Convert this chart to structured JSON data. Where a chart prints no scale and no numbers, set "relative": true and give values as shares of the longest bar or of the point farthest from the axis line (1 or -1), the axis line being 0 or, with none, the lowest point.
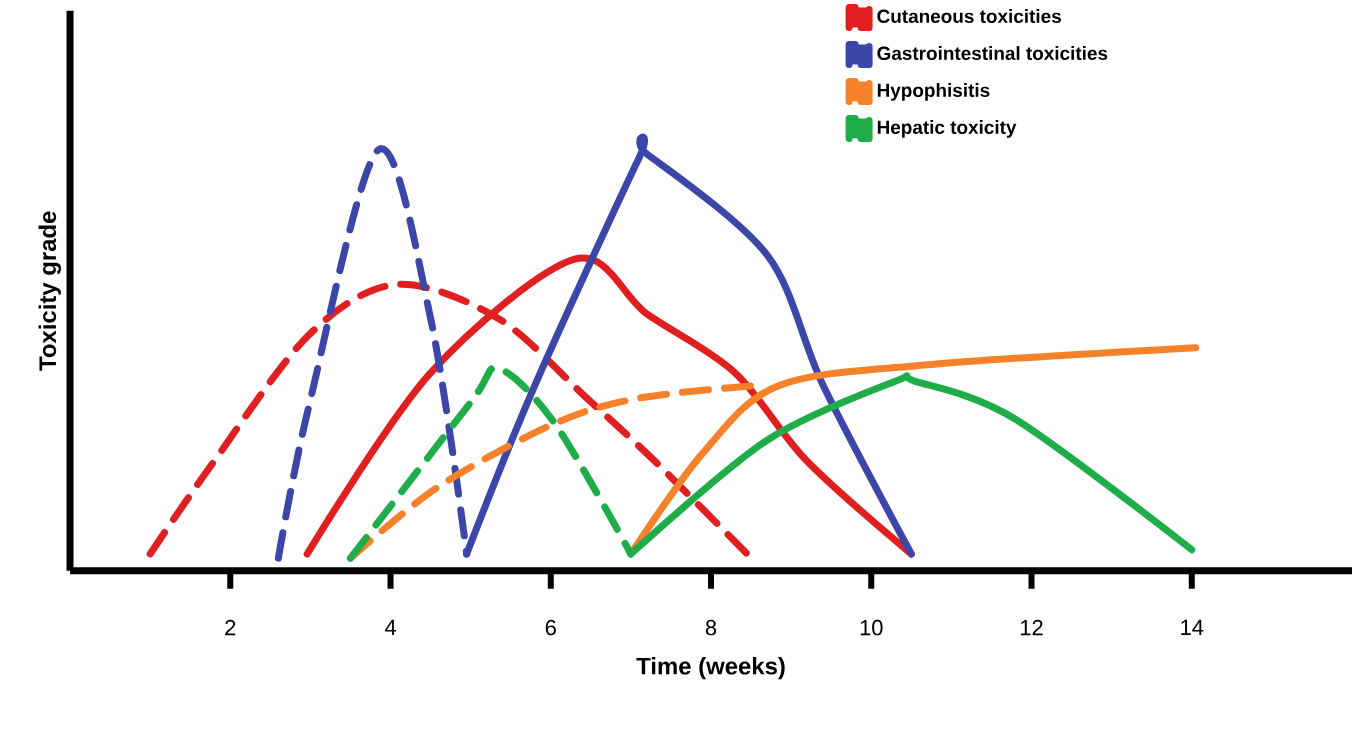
{
  "chart_data": {
    "type": "line",
    "relative": true,
    "xlabel": "Time (weeks)",
    "ylabel": "Toxicity grade",
    "xlim": [
      0,
      16
    ],
    "xticks": [
      2,
      4,
      6,
      8,
      10,
      12,
      14
    ],
    "legend": "top right",
    "grid": false,
    "marker": "none",
    "series": [
      {
        "name": "Cutaneous toxicities",
        "color": "#e02020",
        "line_style": "dashed",
        "x": [
          1.0,
          1.76,
          2.98,
          4.07,
          5.34,
          6.45,
          7.3,
          8.45
        ],
        "values": [
          0.04,
          0.25,
          0.56,
          0.68,
          0.6,
          0.41,
          0.26,
          0.04
        ]
      },
      {
        "color": "#e02020",
        "line_style": "solid",
        "x": [
          2.96,
          4.5,
          6.3,
          7.2,
          8.3,
          9.2,
          10.5
        ],
        "values": [
          0.04,
          0.47,
          0.74,
          0.61,
          0.47,
          0.26,
          0.04
        ]
      },
      {
        "name": "Gastrointestinal toxicities",
        "color": "#3c45a8",
        "line_style": "dashed",
        "x": [
          2.6,
          2.98,
          3.85,
          4.5,
          4.95
        ],
        "values": [
          0.03,
          0.39,
          1.0,
          0.6,
          0.04
        ]
      },
      {
        "color": "#3c45a8",
        "line_style": "solid",
        "x": [
          4.95,
          5.8,
          7.1,
          7.2,
          8.7,
          9.4,
          10.5
        ],
        "values": [
          0.04,
          0.44,
          0.98,
          0.99,
          0.75,
          0.44,
          0.04
        ]
      },
      {
        "name": "Hypophisitis",
        "color": "#f5822a",
        "line_style": "dashed",
        "x": [
          3.5,
          4.6,
          6.05,
          7.1,
          8.55
        ],
        "values": [
          0.03,
          0.2,
          0.35,
          0.41,
          0.44
        ]
      },
      {
        "color": "#f5822a",
        "line_style": "solid",
        "x": [
          7.0,
          7.9,
          8.85,
          10.75,
          14.05
        ],
        "values": [
          0.04,
          0.28,
          0.44,
          0.49,
          0.53
        ]
      },
      {
        "name": "Hepatic toxicity",
        "color": "#1fad4a",
        "line_style": "dashed",
        "x": [
          3.5,
          5.0,
          5.35,
          6.05,
          7.0
        ],
        "values": [
          0.03,
          0.4,
          0.48,
          0.35,
          0.04
        ]
      },
      {
        "color": "#1fad4a",
        "line_style": "solid",
        "x": [
          7.0,
          8.7,
          10.3,
          10.55,
          11.8,
          14.0
        ],
        "values": [
          0.04,
          0.31,
          0.45,
          0.45,
          0.36,
          0.05
        ]
      }
    ]
  }
}
